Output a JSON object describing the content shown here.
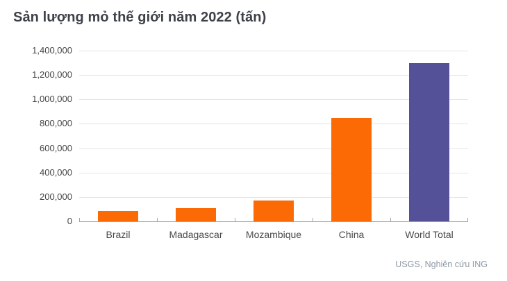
{
  "chart_data": {
    "type": "bar",
    "title": "Sản lượng mỏ thế giới năm 2022 (tấn)",
    "categories": [
      "Brazil",
      "Madagascar",
      "Mozambique",
      "China",
      "World Total"
    ],
    "values": [
      87000,
      110000,
      170000,
      850000,
      1300000
    ],
    "bar_colors": [
      "#FB6A05",
      "#FB6A05",
      "#FB6A05",
      "#FB6A05",
      "#545199"
    ],
    "xlabel": "",
    "ylabel": "",
    "ylim": [
      0,
      1400000
    ],
    "yticks": [
      0,
      200000,
      400000,
      600000,
      800000,
      1000000,
      1200000,
      1400000
    ],
    "grid": true,
    "legend": false,
    "source": "USGS, Nghiên cứu ING"
  },
  "colors": {
    "accent_orange": "#FB6A05",
    "accent_purple": "#545199",
    "gridline": "#E4E4E4",
    "axis": "#A3A3A3",
    "title_text": "#3F414A",
    "tick_text": "#454545",
    "source_text": "#8D97A3",
    "background": "#FFFFFF"
  }
}
